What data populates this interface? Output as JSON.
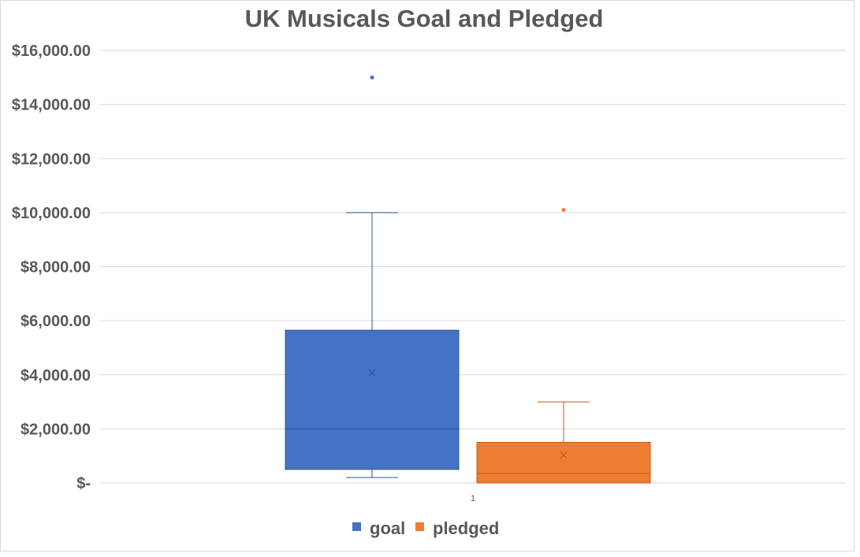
{
  "chart_data": {
    "type": "box",
    "title": "UK Musicals Goal and Pledged",
    "xlabel": "",
    "ylabel": "",
    "ylim": [
      0,
      16000
    ],
    "y_tick_values": [
      0,
      2000,
      4000,
      6000,
      8000,
      10000,
      12000,
      14000,
      16000
    ],
    "y_tick_labels": [
      "$-",
      "$2,000.00",
      "$4,000.00",
      "$6,000.00",
      "$8,000.00",
      "$10,000.00",
      "$12,000.00",
      "$14,000.00",
      "$16,000.00"
    ],
    "categories": [
      "1"
    ],
    "grid": true,
    "legend_position": "bottom",
    "series": [
      {
        "name": "goal",
        "color": "#4472c4",
        "whisker_low": 200,
        "q1": 500,
        "median": 2000,
        "q3": 5650,
        "whisker_high": 10000,
        "mean": 4080,
        "outliers": [
          15000
        ]
      },
      {
        "name": "pledged",
        "color": "#ed7d31",
        "whisker_low": 0,
        "q1": 0,
        "median": 350,
        "q3": 1500,
        "whisker_high": 3000,
        "mean": 1030,
        "outliers": [
          10100
        ]
      }
    ]
  }
}
